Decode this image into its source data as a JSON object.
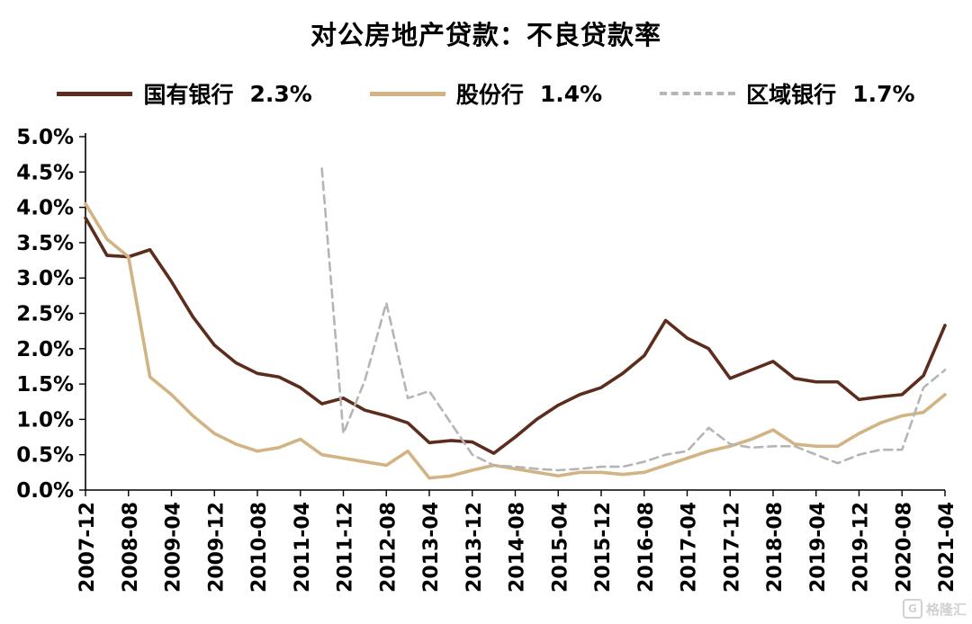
{
  "watermark": "格隆汇",
  "chart_data": {
    "type": "line",
    "title": "对公房地产贷款：不良贷款率",
    "grid": false,
    "legend_position": "top",
    "ylim": [
      0,
      5
    ],
    "y_tick_step": 0.5,
    "y_tick_format": "0.0%",
    "x_label_every": 2,
    "x": [
      "2007-12",
      "2008-04",
      "2008-08",
      "2008-12",
      "2009-04",
      "2009-08",
      "2009-12",
      "2010-04",
      "2010-08",
      "2010-12",
      "2011-04",
      "2011-08",
      "2011-12",
      "2012-04",
      "2012-08",
      "2012-12",
      "2013-04",
      "2013-08",
      "2013-12",
      "2014-04",
      "2014-08",
      "2014-12",
      "2015-04",
      "2015-08",
      "2015-12",
      "2016-04",
      "2016-08",
      "2016-12",
      "2017-04",
      "2017-08",
      "2017-12",
      "2018-04",
      "2018-08",
      "2018-12",
      "2019-04",
      "2019-08",
      "2019-12",
      "2020-04",
      "2020-08",
      "2020-12",
      "2021-04"
    ],
    "x_tick_labels": [
      "2007-12",
      "2008-08",
      "2009-04",
      "2009-12",
      "2010-08",
      "2011-04",
      "2011-12",
      "2012-08",
      "2013-04",
      "2013-12",
      "2014-08",
      "2015-04",
      "2015-12",
      "2016-08",
      "2017-04",
      "2017-12",
      "2018-08",
      "2019-04",
      "2019-12",
      "2020-08",
      "2021-04"
    ],
    "series": [
      {
        "name": "国有银行",
        "current": "2.3%",
        "color": "#5C2D1C",
        "style": "solid",
        "values": [
          3.85,
          3.32,
          3.3,
          3.4,
          2.95,
          2.45,
          2.05,
          1.8,
          1.65,
          1.6,
          1.45,
          1.22,
          1.3,
          1.13,
          1.05,
          0.95,
          0.67,
          0.7,
          0.68,
          0.52,
          0.75,
          1.0,
          1.2,
          1.35,
          1.45,
          1.65,
          1.9,
          2.4,
          2.15,
          2.0,
          1.58,
          1.7,
          1.82,
          1.58,
          1.53,
          1.53,
          1.28,
          1.32,
          1.35,
          1.62,
          2.33
        ]
      },
      {
        "name": "股份行",
        "current": "1.4%",
        "color": "#D2B484",
        "style": "solid",
        "values": [
          4.05,
          3.55,
          3.3,
          1.6,
          1.35,
          1.05,
          0.8,
          0.65,
          0.55,
          0.6,
          0.72,
          0.5,
          0.45,
          0.4,
          0.35,
          0.55,
          0.17,
          0.2,
          0.28,
          0.35,
          0.3,
          0.25,
          0.2,
          0.25,
          0.25,
          0.22,
          0.25,
          0.35,
          0.45,
          0.55,
          0.62,
          0.72,
          0.85,
          0.65,
          0.62,
          0.62,
          0.8,
          0.95,
          1.05,
          1.1,
          1.35
        ]
      },
      {
        "name": "区域银行",
        "current": "1.7%",
        "color": "#B5B5B5",
        "style": "dashed",
        "values": [
          null,
          null,
          null,
          null,
          null,
          null,
          null,
          null,
          null,
          null,
          null,
          4.55,
          0.8,
          1.55,
          2.65,
          1.3,
          1.4,
          0.95,
          0.5,
          0.35,
          0.33,
          0.3,
          0.28,
          0.3,
          0.33,
          0.33,
          0.4,
          0.5,
          0.55,
          0.88,
          0.65,
          0.6,
          0.62,
          0.62,
          0.5,
          0.38,
          0.5,
          0.57,
          0.57,
          1.45,
          1.7
        ]
      }
    ]
  }
}
